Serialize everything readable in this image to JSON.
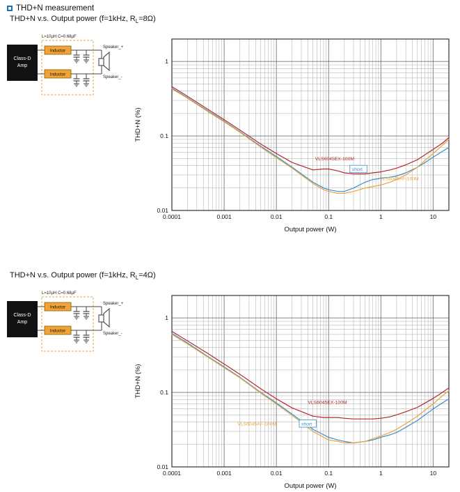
{
  "header": {
    "title": "THD+N measurement"
  },
  "circuit": {
    "amp_line1": "Class-D",
    "amp_line2": "Amp",
    "inductor": "Inductor",
    "filter_note": "L=10μH  C=0.68μF",
    "speaker_plus": "Speaker_+",
    "speaker_minus": "Speaker_-"
  },
  "colors": {
    "red": "#b5282e",
    "blue": "#3b8ec6",
    "orange": "#e8a33d",
    "accent_blue": "#1f6fb5",
    "inductor_fill": "#f0a336",
    "grid_minor": "#aaaaaa",
    "grid_major": "#777777",
    "plot_border": "#333333"
  },
  "chart_data": [
    {
      "type": "line",
      "title": "THD+N v.s. Output power (f=1kHz, RL=8Ω)",
      "title_pre": "THD+N v.s. Output power (f=1kHz, R",
      "title_sub": "L",
      "title_post": "=8Ω)",
      "xlabel": "Output power (W)",
      "ylabel": "THD+N (%)",
      "xscale": "log",
      "yscale": "log",
      "xlim": [
        0.0001,
        20
      ],
      "ylim": [
        0.01,
        2
      ],
      "grid": true,
      "xticks": [
        0.0001,
        0.001,
        0.01,
        0.1,
        1,
        10
      ],
      "xtick_labels": [
        "0.0001",
        "0.001",
        "0.01",
        "0.1",
        "1",
        "10"
      ],
      "yticks": [
        0.01,
        0.1,
        1
      ],
      "ytick_labels": [
        "0.01",
        "0.1",
        "1"
      ],
      "x": [
        0.0001,
        0.0002,
        0.0005,
        0.001,
        0.002,
        0.005,
        0.01,
        0.02,
        0.05,
        0.08,
        0.1,
        0.15,
        0.2,
        0.3,
        0.5,
        0.7,
        1,
        1.5,
        2,
        3,
        5,
        7,
        10,
        15,
        20
      ],
      "series": [
        {
          "name": "VLS6045EX-100M",
          "color": "#b5282e",
          "y": [
            0.46,
            0.34,
            0.225,
            0.165,
            0.12,
            0.078,
            0.058,
            0.044,
            0.035,
            0.036,
            0.036,
            0.034,
            0.032,
            0.031,
            0.031,
            0.032,
            0.033,
            0.035,
            0.037,
            0.041,
            0.048,
            0.056,
            0.066,
            0.08,
            0.095
          ]
        },
        {
          "name": "short",
          "color": "#3b8ec6",
          "y": [
            0.44,
            0.325,
            0.215,
            0.158,
            0.114,
            0.073,
            0.053,
            0.038,
            0.024,
            0.02,
            0.019,
            0.018,
            0.018,
            0.02,
            0.024,
            0.026,
            0.027,
            0.028,
            0.029,
            0.032,
            0.038,
            0.044,
            0.052,
            0.062,
            0.07
          ]
        },
        {
          "name": "VLS6045AF-100M",
          "color": "#e8a33d",
          "y": [
            0.43,
            0.32,
            0.21,
            0.155,
            0.112,
            0.071,
            0.051,
            0.037,
            0.023,
            0.019,
            0.018,
            0.017,
            0.017,
            0.018,
            0.02,
            0.021,
            0.022,
            0.024,
            0.026,
            0.03,
            0.038,
            0.047,
            0.058,
            0.075,
            0.09
          ]
        }
      ],
      "annotations": [
        {
          "text": "VLS6045EX-100M",
          "x": 0.055,
          "y": 0.047,
          "color": "#b5282e",
          "boxed": false
        },
        {
          "text": "short",
          "x": 0.28,
          "y": 0.034,
          "color": "#3b8ec6",
          "boxed": true
        },
        {
          "text": "VLS6045AF-100M",
          "x": 0.95,
          "y": 0.0255,
          "color": "#e8a33d",
          "boxed": false
        }
      ]
    },
    {
      "type": "line",
      "title": "THD+N v.s. Output power (f=1kHz, RL=4Ω)",
      "title_pre": "THD+N v.s. Output power (f=1kHz, R",
      "title_sub": "L",
      "title_post": "=4Ω)",
      "xlabel": "Output power (W)",
      "ylabel": "THD+N (%)",
      "xscale": "log",
      "yscale": "log",
      "xlim": [
        0.0001,
        20
      ],
      "ylim": [
        0.01,
        2
      ],
      "grid": true,
      "xticks": [
        0.0001,
        0.001,
        0.01,
        0.1,
        1,
        10
      ],
      "xtick_labels": [
        "0.0001",
        "0.001",
        "0.01",
        "0.1",
        "1",
        "10"
      ],
      "yticks": [
        0.01,
        0.1,
        1
      ],
      "ytick_labels": [
        "0.01",
        "0.1",
        "1"
      ],
      "x": [
        0.0001,
        0.0002,
        0.0005,
        0.001,
        0.002,
        0.005,
        0.01,
        0.02,
        0.05,
        0.08,
        0.1,
        0.15,
        0.2,
        0.3,
        0.5,
        0.7,
        1,
        1.5,
        2,
        3,
        5,
        7,
        10,
        15,
        20
      ],
      "series": [
        {
          "name": "VLS6045EX-100M",
          "color": "#b5282e",
          "y": [
            0.66,
            0.49,
            0.33,
            0.24,
            0.175,
            0.112,
            0.082,
            0.062,
            0.048,
            0.046,
            0.046,
            0.046,
            0.045,
            0.044,
            0.044,
            0.044,
            0.045,
            0.047,
            0.05,
            0.055,
            0.063,
            0.072,
            0.083,
            0.1,
            0.115
          ]
        },
        {
          "name": "short",
          "color": "#3b8ec6",
          "y": [
            0.62,
            0.46,
            0.3,
            0.22,
            0.16,
            0.1,
            0.072,
            0.051,
            0.032,
            0.027,
            0.025,
            0.023,
            0.022,
            0.021,
            0.022,
            0.023,
            0.025,
            0.027,
            0.029,
            0.034,
            0.042,
            0.05,
            0.06,
            0.072,
            0.082
          ]
        },
        {
          "name": "VLS6045AF-100M",
          "color": "#e8a33d",
          "y": [
            0.6,
            0.445,
            0.295,
            0.215,
            0.157,
            0.098,
            0.07,
            0.049,
            0.03,
            0.025,
            0.023,
            0.022,
            0.021,
            0.021,
            0.022,
            0.024,
            0.026,
            0.029,
            0.032,
            0.038,
            0.048,
            0.058,
            0.07,
            0.09,
            0.105
          ]
        }
      ],
      "annotations": [
        {
          "text": "VLS6045EX-100M",
          "x": 0.04,
          "y": 0.07,
          "color": "#b5282e",
          "boxed": false
        },
        {
          "text": "VLS6045AF-100M",
          "x": 0.0018,
          "y": 0.036,
          "color": "#e8a33d",
          "boxed": false
        },
        {
          "text": "short",
          "x": 0.03,
          "y": 0.036,
          "color": "#3b8ec6",
          "boxed": true
        }
      ]
    }
  ]
}
